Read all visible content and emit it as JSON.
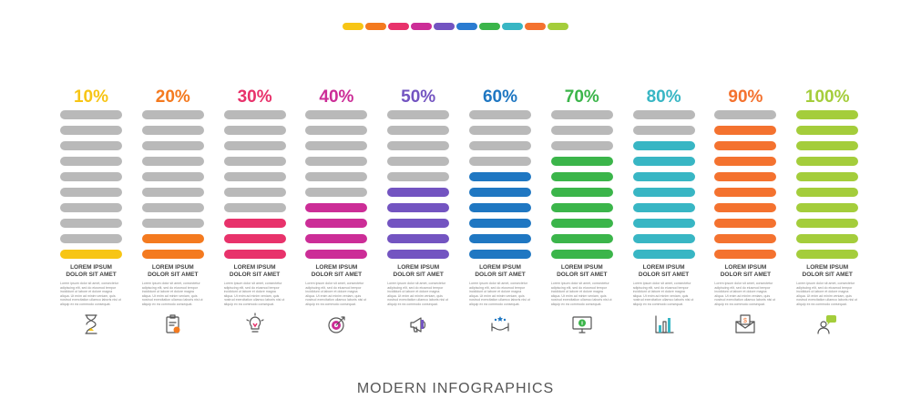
{
  "strip_colors": [
    "#f7c515",
    "#f47a1f",
    "#e8326b",
    "#cc2d97",
    "#7354c1",
    "#2a7bd1",
    "#3bb54a",
    "#38b6c4",
    "#f4722f",
    "#a4cd3b"
  ],
  "columns": [
    {
      "percent": "10%",
      "fill_fraction": 0.1,
      "color": "#f7c515",
      "title": "LOREM IPSUM\nDOLOR SIT AMET",
      "desc": "Lorem ipsum dolor sit amet, consectetur adipiscing elit, sed do eiusmod tempor incididunt ut labore et dolore magna aliqua. Ut enim ad minim veniam, quis nostrud exercitation ullamco laboris nisi ut aliquip ex ea commodo consequat.",
      "icon": "hourglass-icon"
    },
    {
      "percent": "20%",
      "fill_fraction": 0.2,
      "color": "#f47a1f",
      "title": "LOREM IPSUM\nDOLOR SIT AMET",
      "desc": "Lorem ipsum dolor sit amet, consectetur adipiscing elit, sed do eiusmod tempor incididunt ut labore et dolore magna aliqua. Ut enim ad minim veniam, quis nostrud exercitation ullamco laboris nisi ut aliquip ex ea commodo consequat.",
      "icon": "clipboard-icon"
    },
    {
      "percent": "30%",
      "fill_fraction": 0.3,
      "color": "#e8326b",
      "title": "LOREM IPSUM\nDOLOR SIT AMET",
      "desc": "Lorem ipsum dolor sit amet, consectetur adipiscing elit, sed do eiusmod tempor incididunt ut labore et dolore magna aliqua. Ut enim ad minim veniam, quis nostrud exercitation ullamco laboris nisi ut aliquip ex ea commodo consequat.",
      "icon": "lightbulb-icon"
    },
    {
      "percent": "40%",
      "fill_fraction": 0.4,
      "color": "#cc2d97",
      "title": "LOREM IPSUM\nDOLOR SIT AMET",
      "desc": "Lorem ipsum dolor sit amet, consectetur adipiscing elit, sed do eiusmod tempor incididunt ut labore et dolore magna aliqua. Ut enim ad minim veniam, quis nostrud exercitation ullamco laboris nisi ut aliquip ex ea commodo consequat.",
      "icon": "target-icon"
    },
    {
      "percent": "50%",
      "fill_fraction": 0.5,
      "color": "#7354c1",
      "title": "LOREM IPSUM\nDOLOR SIT AMET",
      "desc": "Lorem ipsum dolor sit amet, consectetur adipiscing elit, sed do eiusmod tempor incididunt ut labore et dolore magna aliqua. Ut enim ad minim veniam, quis nostrud exercitation ullamco laboris nisi ut aliquip ex ea commodo consequat.",
      "icon": "megaphone-icon"
    },
    {
      "percent": "60%",
      "fill_fraction": 0.6,
      "color": "#1f77c2",
      "title": "LOREM IPSUM\nDOLOR SIT AMET",
      "desc": "Lorem ipsum dolor sit amet, consectetur adipiscing elit, sed do eiusmod tempor incididunt ut labore et dolore magna aliqua. Ut enim ad minim veniam, quis nostrud exercitation ullamco laboris nisi ut aliquip ex ea commodo consequat.",
      "icon": "hands-stars-icon"
    },
    {
      "percent": "70%",
      "fill_fraction": 0.7,
      "color": "#3bb54a",
      "title": "LOREM IPSUM\nDOLOR SIT AMET",
      "desc": "Lorem ipsum dolor sit amet, consectetur adipiscing elit, sed do eiusmod tempor incididunt ut labore et dolore magna aliqua. Ut enim ad minim veniam, quis nostrud exercitation ullamco laboris nisi ut aliquip ex ea commodo consequat.",
      "icon": "monitor-dollar-icon"
    },
    {
      "percent": "80%",
      "fill_fraction": 0.8,
      "color": "#38b6c4",
      "title": "LOREM IPSUM\nDOLOR SIT AMET",
      "desc": "Lorem ipsum dolor sit amet, consectetur adipiscing elit, sed do eiusmod tempor incididunt ut labore et dolore magna aliqua. Ut enim ad minim veniam, quis nostrud exercitation ullamco laboris nisi ut aliquip ex ea commodo consequat.",
      "icon": "bar-chart-icon"
    },
    {
      "percent": "90%",
      "fill_fraction": 0.9,
      "color": "#f4722f",
      "title": "LOREM IPSUM\nDOLOR SIT AMET",
      "desc": "Lorem ipsum dolor sit amet, consectetur adipiscing elit, sed do eiusmod tempor incididunt ut labore et dolore magna aliqua. Ut enim ad minim veniam, quis nostrud exercitation ullamco laboris nisi ut aliquip ex ea commodo consequat.",
      "icon": "envelope-dollar-icon"
    },
    {
      "percent": "100%",
      "fill_fraction": 1.0,
      "color": "#a4cd3b",
      "title": "LOREM IPSUM\nDOLOR SIT AMET",
      "desc": "Lorem ipsum dolor sit amet, consectetur adipiscing elit, sed do eiusmod tempor incididunt ut labore et dolore magna aliqua. Ut enim ad minim veniam, quis nostrud exercitation ullamco laboris nisi ut aliquip ex ea commodo consequat.",
      "icon": "chat-person-icon"
    }
  ],
  "footer_title": "MODERN INFOGRAPHICS",
  "side_id": "955521848"
}
